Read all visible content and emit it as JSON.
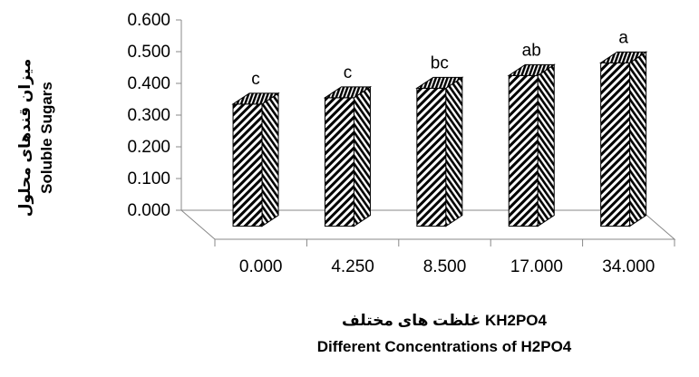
{
  "chart_data": {
    "type": "bar",
    "style": "3d-columns",
    "categories": [
      "0.000",
      "4.250",
      "8.500",
      "17.000",
      "34.000"
    ],
    "values": [
      0.385,
      0.405,
      0.435,
      0.475,
      0.515
    ],
    "value_letters": [
      "c",
      "c",
      "bc",
      "ab",
      "a"
    ],
    "ylim": [
      0.0,
      0.6
    ],
    "yticks": [
      "0.000",
      "0.100",
      "0.200",
      "0.300",
      "0.400",
      "0.500",
      "0.600"
    ],
    "ylabel_fa": "میزان قندهای محلول",
    "ylabel_en": "Soluble Sugars",
    "xlabel_fa": "غلظت های مختلف KH2PO4",
    "xlabel_en": "Different Concentrations of H2PO4",
    "grid": false,
    "legend": "none",
    "bar_fill": "diagonal-hatch",
    "bar_color": "#000000"
  }
}
